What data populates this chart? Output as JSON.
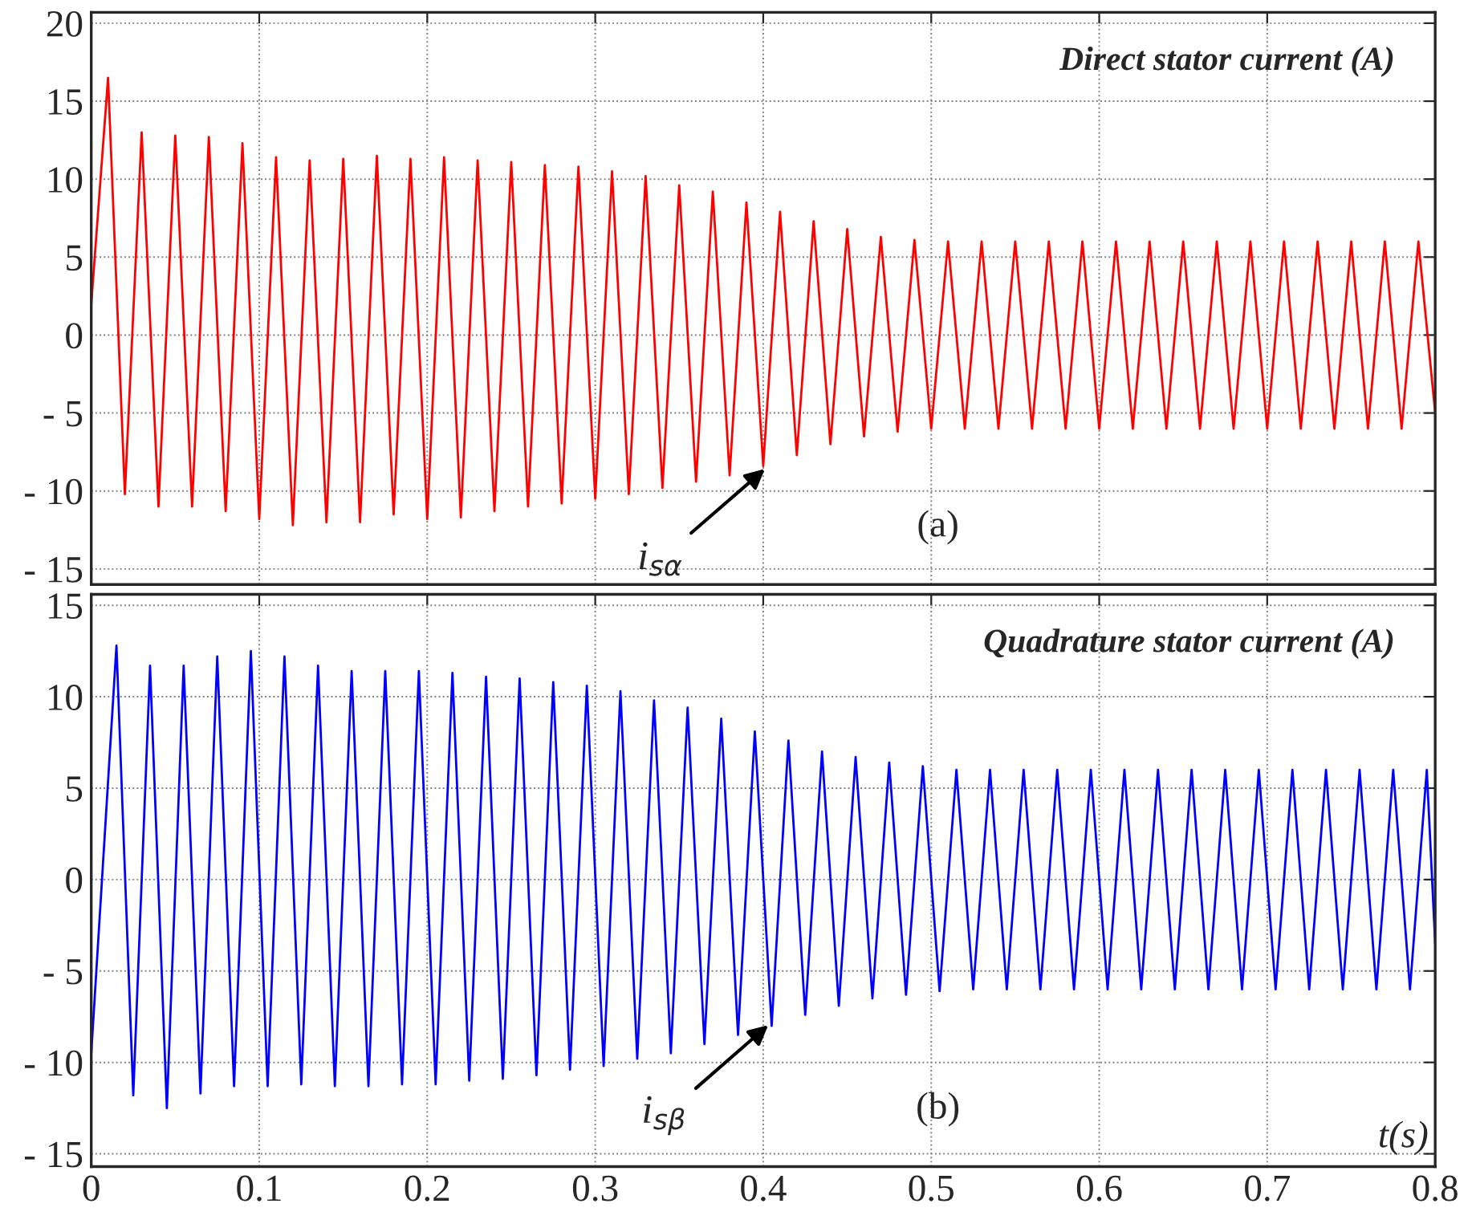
{
  "chart_data": [
    {
      "type": "line",
      "title": "Direct stator current (A)",
      "xlim": [
        0,
        0.8
      ],
      "xticks": [
        0,
        0.1,
        0.2,
        0.3,
        0.4,
        0.5,
        0.6,
        0.7,
        0.8
      ],
      "ylim": [
        -16,
        20.7
      ],
      "yticks": [
        {
          "value": -15,
          "label": "- 15"
        },
        {
          "value": -10,
          "label": "- 10"
        },
        {
          "value": -5,
          "label": "- 5"
        },
        0,
        5,
        10,
        15,
        20
      ],
      "tick_labels": "y",
      "grid": true,
      "annotations": [
        {
          "text": "i$_{sα}$",
          "x": 0.403,
          "y": -8.4
        },
        "(a)"
      ],
      "series": [
        {
          "color": "#ff0000",
          "x": [
            0,
            0.01,
            0.02,
            0.03,
            0.04,
            0.05,
            0.06,
            0.07,
            0.08,
            0.09,
            0.1,
            0.11,
            0.12,
            0.13,
            0.14,
            0.15,
            0.16,
            0.17,
            0.18,
            0.19,
            0.2,
            0.21,
            0.22,
            0.23,
            0.24,
            0.25,
            0.26,
            0.27,
            0.28,
            0.29,
            0.3,
            0.31,
            0.32,
            0.33,
            0.34,
            0.35,
            0.36,
            0.37,
            0.38,
            0.39,
            0.4,
            0.41,
            0.42,
            0.43,
            0.44,
            0.45,
            0.46,
            0.47,
            0.48,
            0.49,
            0.5,
            0.51,
            0.52,
            0.53,
            0.54,
            0.55,
            0.56,
            0.57,
            0.58,
            0.59,
            0.6,
            0.61,
            0.62,
            0.63,
            0.64,
            0.65,
            0.66,
            0.67,
            0.68,
            0.69,
            0.7,
            0.71,
            0.72,
            0.73,
            0.74,
            0.75,
            0.76,
            0.77,
            0.78,
            0.79,
            0.8
          ],
          "values": [
            2,
            16.5,
            -10.2,
            13,
            -11,
            12.8,
            -11,
            12.7,
            -11.3,
            12.3,
            -11.8,
            11.4,
            -12.2,
            11.2,
            -12,
            11.3,
            -12,
            11.5,
            -11.5,
            11.3,
            -11.8,
            11.4,
            -11.7,
            11.2,
            -11.3,
            11.1,
            -11,
            10.9,
            -10.8,
            10.8,
            -10.5,
            10.5,
            -10.2,
            10.2,
            -9.8,
            9.6,
            -9.4,
            9.2,
            -9,
            8.5,
            -8.4,
            7.9,
            -7.7,
            7.3,
            -7,
            6.8,
            -6.5,
            6.3,
            -6.2,
            6.1,
            -6,
            6,
            -6,
            6,
            -6,
            6,
            -6,
            6,
            -6,
            6,
            -6,
            6,
            -6,
            6,
            -6,
            6,
            -6,
            6,
            -6,
            6,
            -6,
            6,
            -6,
            6,
            -6,
            6,
            -6,
            6,
            -6,
            6,
            -5
          ]
        }
      ]
    },
    {
      "type": "line",
      "title": "Quadrature stator current (A)",
      "xlabel": "t(s)",
      "xlim": [
        0,
        0.8
      ],
      "xticks": [
        0,
        0.1,
        0.2,
        0.3,
        0.4,
        0.5,
        0.6,
        0.7,
        0.8
      ],
      "ylim": [
        -15.7,
        15.6
      ],
      "yticks": [
        {
          "value": -15,
          "label": "- 15"
        },
        {
          "value": -10,
          "label": "- 10"
        },
        {
          "value": -5,
          "label": "- 5"
        },
        0,
        5,
        10,
        15
      ],
      "grid": true,
      "annotations": [
        {
          "text": "i$_{sβ}$",
          "x": 0.405,
          "y": -7.8
        },
        "(b)"
      ],
      "series": [
        {
          "color": "#0000ff",
          "x": [
            0,
            0.015,
            0.025,
            0.035,
            0.045,
            0.055,
            0.065,
            0.075,
            0.085,
            0.095,
            0.105,
            0.115,
            0.125,
            0.135,
            0.145,
            0.155,
            0.165,
            0.175,
            0.185,
            0.195,
            0.205,
            0.215,
            0.225,
            0.235,
            0.245,
            0.255,
            0.265,
            0.275,
            0.285,
            0.295,
            0.305,
            0.315,
            0.325,
            0.335,
            0.345,
            0.355,
            0.365,
            0.375,
            0.385,
            0.395,
            0.405,
            0.415,
            0.425,
            0.435,
            0.445,
            0.455,
            0.465,
            0.475,
            0.485,
            0.495,
            0.505,
            0.515,
            0.525,
            0.535,
            0.545,
            0.555,
            0.565,
            0.575,
            0.585,
            0.595,
            0.605,
            0.615,
            0.625,
            0.635,
            0.645,
            0.655,
            0.665,
            0.675,
            0.685,
            0.695,
            0.705,
            0.715,
            0.725,
            0.735,
            0.745,
            0.755,
            0.765,
            0.775,
            0.785,
            0.795,
            0.8
          ],
          "values": [
            -9.5,
            12.8,
            -11.8,
            11.7,
            -12.5,
            11.7,
            -11.7,
            12.2,
            -11.3,
            12.5,
            -11.3,
            12.2,
            -11.2,
            11.7,
            -11.3,
            11.4,
            -11.3,
            11.4,
            -11.2,
            11.4,
            -11.2,
            11.3,
            -11,
            11.1,
            -10.9,
            11,
            -10.7,
            10.8,
            -10.4,
            10.6,
            -10.2,
            10.3,
            -9.8,
            9.8,
            -9.5,
            9.4,
            -9,
            8.8,
            -8.5,
            8.1,
            -8,
            7.6,
            -7.4,
            7,
            -6.9,
            6.7,
            -6.5,
            6.4,
            -6.3,
            6.2,
            -6.1,
            6,
            -6,
            6,
            -6,
            6,
            -6,
            6,
            -6,
            6,
            -6,
            6,
            -6,
            6,
            -6,
            6,
            -6,
            6,
            -6,
            6,
            -6,
            6,
            -6,
            6,
            -6,
            6,
            -6,
            6,
            -6,
            6,
            -3.5
          ]
        }
      ]
    }
  ]
}
